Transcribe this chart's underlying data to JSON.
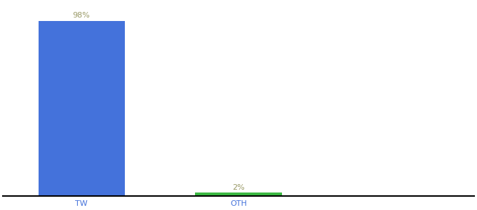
{
  "categories": [
    "TW",
    "OTH"
  ],
  "values": [
    98,
    2
  ],
  "bar_colors": [
    "#4472db",
    "#3cb843"
  ],
  "labels": [
    "98%",
    "2%"
  ],
  "label_color": "#999966",
  "ylim": [
    0,
    108
  ],
  "background_color": "#ffffff",
  "bar_width": 0.55,
  "label_fontsize": 8,
  "tick_fontsize": 8,
  "tick_color": "#4472db",
  "spine_color": "#000000"
}
